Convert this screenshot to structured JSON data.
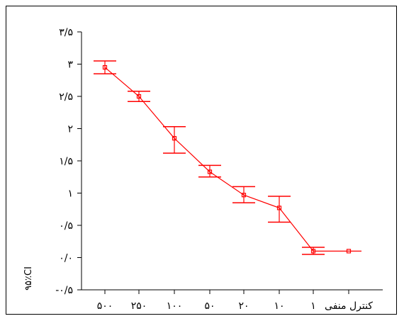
{
  "chart_data": {
    "type": "line",
    "title": "",
    "xlabel": "",
    "ylabel": "۹۵٪CI",
    "categories": [
      "۵۰۰",
      "۲۵۰",
      "۱۰۰",
      "۵۰",
      "۲۰",
      "۱۰",
      "۱",
      "کنترل منفی"
    ],
    "y_ticks": [
      {
        "value": -0.5,
        "label": "-۰/۵"
      },
      {
        "value": 0,
        "label": "۰/۰"
      },
      {
        "value": 0.5,
        "label": "۰/۵"
      },
      {
        "value": 1,
        "label": "۱"
      },
      {
        "value": 1.5,
        "label": "۱/۵"
      },
      {
        "value": 2,
        "label": "۲"
      },
      {
        "value": 2.5,
        "label": "۲/۵"
      },
      {
        "value": 3,
        "label": "۳"
      },
      {
        "value": 3.5,
        "label": "۳/۵"
      }
    ],
    "ylim": [
      -0.5,
      3.5
    ],
    "grid": false,
    "color": "#ff0000",
    "series": [
      {
        "values": [
          2.95,
          2.5,
          1.85,
          1.33,
          0.97,
          0.77,
          0.1,
          0.1
        ],
        "lower": [
          2.85,
          2.42,
          1.62,
          1.25,
          0.85,
          0.55,
          0.05,
          0.1
        ],
        "upper": [
          3.05,
          2.58,
          2.03,
          1.43,
          1.1,
          0.95,
          0.16,
          0.1
        ]
      }
    ]
  }
}
